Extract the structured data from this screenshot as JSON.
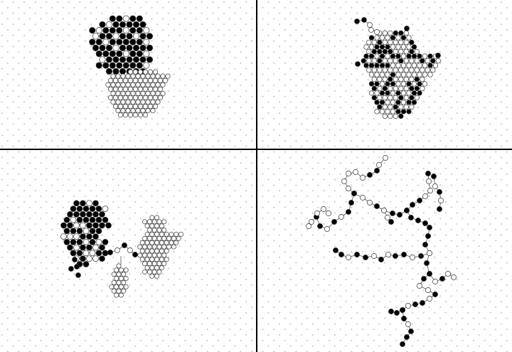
{
  "figure": {
    "panels": [
      {
        "id": "top-left",
        "description_free": true,
        "scene": "black-cluster-over-grey-cluster"
      },
      {
        "id": "top-right",
        "scene": "mixed-black-white-cluster"
      },
      {
        "id": "bottom-left",
        "scene": "black-grey-separated-clusters"
      },
      {
        "id": "bottom-right",
        "scene": "branched-chains"
      }
    ],
    "colors": {
      "background": "#ffffff",
      "dot_grid": "#b8b8b8",
      "black_particle": "#000000",
      "white_particle": "#ffffff",
      "grey_particle": "#e4e4e4",
      "divider": "#000000",
      "bond": "#555555"
    }
  }
}
